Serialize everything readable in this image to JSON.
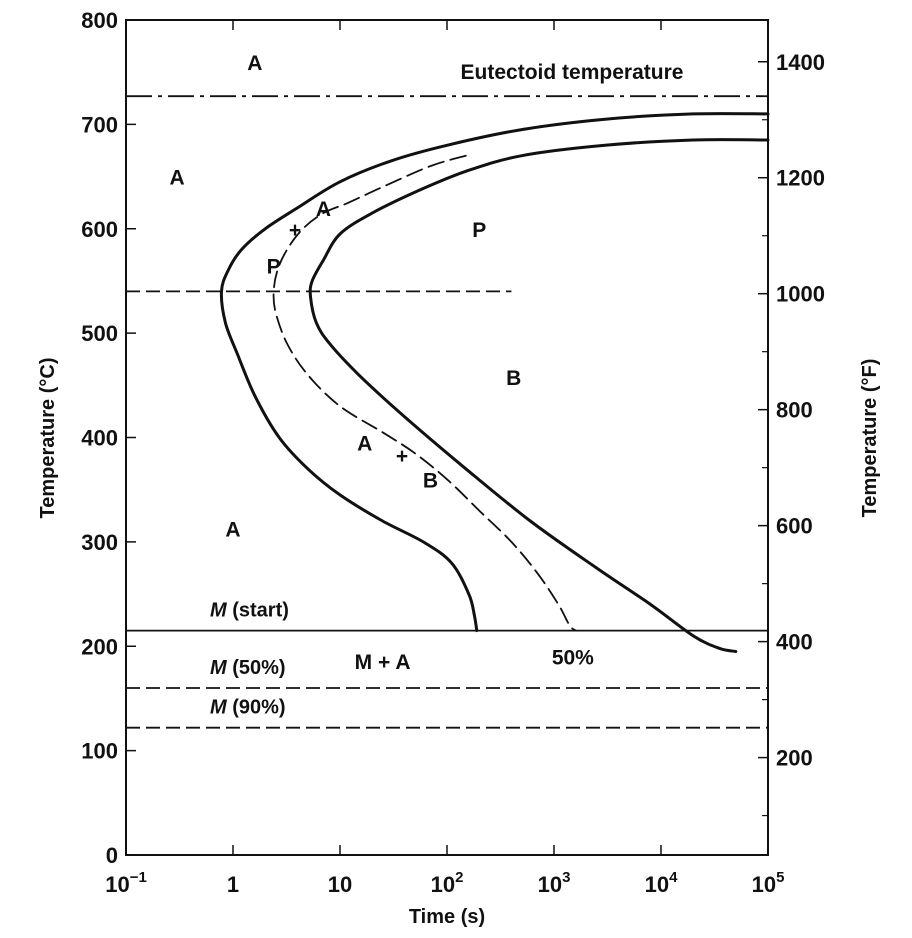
{
  "chart_data": {
    "type": "line",
    "title": "",
    "xlabel": "Time (s)",
    "ylabel_left": "Temperature (°C)",
    "ylabel_right": "Temperature (°F)",
    "x_scale": "log",
    "xlim": [
      0.1,
      100000
    ],
    "ylim": [
      0,
      800
    ],
    "x_ticks": [
      {
        "value": 0.1,
        "base": "10",
        "exp": "−1"
      },
      {
        "value": 1,
        "base": "1",
        "exp": ""
      },
      {
        "value": 10,
        "base": "10",
        "exp": ""
      },
      {
        "value": 100,
        "base": "10",
        "exp": "2"
      },
      {
        "value": 1000,
        "base": "10",
        "exp": "3"
      },
      {
        "value": 10000,
        "base": "10",
        "exp": "4"
      },
      {
        "value": 100000,
        "base": "10",
        "exp": "5"
      }
    ],
    "y_ticks_left": [
      "0",
      "100",
      "200",
      "300",
      "400",
      "500",
      "600",
      "700",
      "800"
    ],
    "y_ticks_right": [
      "200",
      "400",
      "600",
      "800",
      "1000",
      "1200",
      "1400"
    ],
    "reference_lines": [
      {
        "name": "eutectoid",
        "label": "Eutectoid temperature",
        "y": 727,
        "style": "dash-dot"
      },
      {
        "name": "m-start",
        "label_italic": "M",
        "label_rest": " (start)",
        "y": 215,
        "style": "solid"
      },
      {
        "name": "m-50",
        "label_italic": "M",
        "label_rest": " (50%)",
        "y": 160,
        "style": "dashed"
      },
      {
        "name": "m-90",
        "label_italic": "M",
        "label_rest": " (90%)",
        "y": 122,
        "style": "dashed"
      },
      {
        "name": "nose-guide",
        "label": "",
        "y": 540,
        "x_range": [
          0.1,
          400
        ],
        "style": "dashed"
      }
    ],
    "series": [
      {
        "key": "start",
        "style": "solid",
        "points": [
          [
            100000,
            710
          ],
          [
            20000,
            710
          ],
          [
            3000,
            705
          ],
          [
            500,
            695
          ],
          [
            100,
            680
          ],
          [
            30,
            665
          ],
          [
            10,
            645
          ],
          [
            4,
            620
          ],
          [
            2,
            600
          ],
          [
            1.2,
            580
          ],
          [
            0.9,
            560
          ],
          [
            0.78,
            540
          ],
          [
            0.85,
            510
          ],
          [
            1.1,
            480
          ],
          [
            1.6,
            440
          ],
          [
            2.7,
            400
          ],
          [
            5,
            370
          ],
          [
            10,
            345
          ],
          [
            25,
            320
          ],
          [
            60,
            300
          ],
          [
            110,
            280
          ],
          [
            160,
            250
          ],
          [
            180,
            230
          ],
          [
            190,
            215
          ]
        ]
      },
      {
        "key": "fifty",
        "style": "dashed",
        "points": [
          [
            150,
            670
          ],
          [
            70,
            660
          ],
          [
            25,
            640
          ],
          [
            12,
            625
          ],
          [
            7,
            615
          ],
          [
            4.5,
            600
          ],
          [
            3.2,
            580
          ],
          [
            2.6,
            560
          ],
          [
            2.4,
            540
          ],
          [
            2.5,
            520
          ],
          [
            3.2,
            490
          ],
          [
            5,
            460
          ],
          [
            10,
            430
          ],
          [
            25,
            405
          ],
          [
            50,
            385
          ],
          [
            100,
            360
          ],
          [
            200,
            330
          ],
          [
            400,
            300
          ],
          [
            700,
            270
          ],
          [
            1100,
            240
          ],
          [
            1400,
            220
          ],
          [
            1600,
            215
          ]
        ]
      },
      {
        "key": "finish",
        "style": "solid",
        "points": [
          [
            100000,
            685
          ],
          [
            20000,
            685
          ],
          [
            3000,
            680
          ],
          [
            500,
            670
          ],
          [
            150,
            655
          ],
          [
            50,
            635
          ],
          [
            20,
            615
          ],
          [
            10,
            595
          ],
          [
            7,
            570
          ],
          [
            5.5,
            550
          ],
          [
            5.3,
            535
          ],
          [
            6,
            510
          ],
          [
            8,
            490
          ],
          [
            15,
            460
          ],
          [
            40,
            420
          ],
          [
            150,
            370
          ],
          [
            600,
            320
          ],
          [
            2500,
            275
          ],
          [
            8000,
            240
          ],
          [
            20000,
            210
          ],
          [
            35000,
            198
          ],
          [
            50000,
            195
          ]
        ]
      }
    ],
    "labels": [
      {
        "text": "A",
        "x": 1.6,
        "y": 760
      },
      {
        "text": "A",
        "x": 0.3,
        "y": 650
      },
      {
        "text": "A",
        "x": 7,
        "y": 620
      },
      {
        "text": "+",
        "x": 3.8,
        "y": 600
      },
      {
        "text": "P",
        "x": 2.4,
        "y": 565
      },
      {
        "text": "P",
        "x": 200,
        "y": 600
      },
      {
        "text": "B",
        "x": 420,
        "y": 458
      },
      {
        "text": "A",
        "x": 17,
        "y": 395
      },
      {
        "text": "+",
        "x": 38,
        "y": 383
      },
      {
        "text": "B",
        "x": 70,
        "y": 360
      },
      {
        "text": "A",
        "x": 1,
        "y": 313
      },
      {
        "text": "M + A",
        "x": 25,
        "y": 186
      },
      {
        "text": "50%",
        "x": 1500,
        "y": 190
      }
    ]
  }
}
